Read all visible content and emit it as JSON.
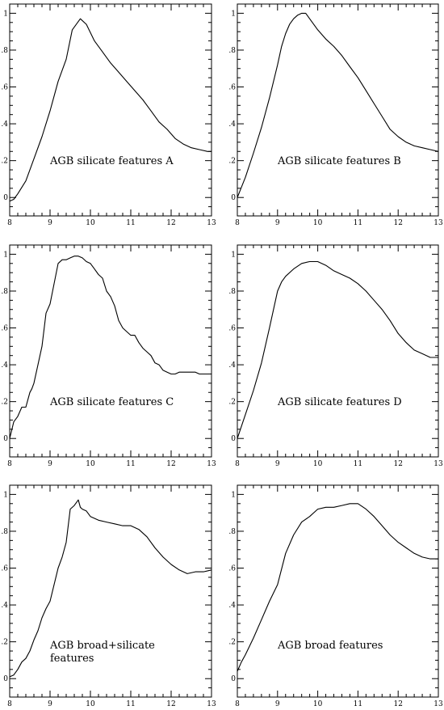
{
  "chart_data": [
    {
      "type": "line",
      "panel": "A",
      "label_lines": [
        "AGB silicate features A"
      ],
      "xlim": [
        8,
        13
      ],
      "ylim": [
        -0.1,
        1.05
      ],
      "xticks": [
        8,
        9,
        10,
        11,
        12,
        13
      ],
      "xtick_labels": [
        "8",
        "9",
        "10",
        "11",
        "12",
        "13"
      ],
      "yticks": [
        0,
        0.2,
        0.4,
        0.6,
        0.8,
        1
      ],
      "ytick_labels": [
        "0",
        ".2",
        ".4",
        ".6",
        ".8",
        "1"
      ],
      "x": [
        8.0,
        8.1,
        8.2,
        8.4,
        8.6,
        8.8,
        9.0,
        9.2,
        9.4,
        9.55,
        9.65,
        9.75,
        9.9,
        10.1,
        10.3,
        10.5,
        10.7,
        10.9,
        11.1,
        11.3,
        11.5,
        11.7,
        11.9,
        12.1,
        12.3,
        12.5,
        12.7,
        12.9,
        13.0
      ],
      "y": [
        -0.02,
        -0.01,
        0.02,
        0.09,
        0.21,
        0.33,
        0.47,
        0.63,
        0.75,
        0.91,
        0.94,
        0.97,
        0.94,
        0.85,
        0.79,
        0.73,
        0.68,
        0.63,
        0.58,
        0.53,
        0.47,
        0.41,
        0.37,
        0.32,
        0.29,
        0.27,
        0.26,
        0.25,
        0.25
      ]
    },
    {
      "type": "line",
      "panel": "B",
      "label_lines": [
        "AGB silicate features B"
      ],
      "xlim": [
        8,
        13
      ],
      "ylim": [
        -0.1,
        1.05
      ],
      "xticks": [
        8,
        9,
        10,
        11,
        12,
        13
      ],
      "xtick_labels": [
        "8",
        "9",
        "10",
        "11",
        "12",
        "13"
      ],
      "yticks": [
        0,
        0.2,
        0.4,
        0.6,
        0.8,
        1
      ],
      "ytick_labels": [
        "0",
        ".2",
        ".4",
        ".6",
        ".8",
        "1"
      ],
      "x": [
        8.0,
        8.2,
        8.4,
        8.6,
        8.8,
        9.0,
        9.1,
        9.2,
        9.3,
        9.4,
        9.5,
        9.6,
        9.7,
        9.8,
        10.0,
        10.2,
        10.4,
        10.6,
        10.8,
        11.0,
        11.2,
        11.4,
        11.6,
        11.8,
        12.0,
        12.2,
        12.4,
        12.6,
        12.8,
        13.0
      ],
      "y": [
        0.0,
        0.11,
        0.24,
        0.38,
        0.54,
        0.72,
        0.82,
        0.89,
        0.94,
        0.97,
        0.99,
        1.0,
        1.0,
        0.97,
        0.91,
        0.86,
        0.82,
        0.77,
        0.71,
        0.65,
        0.58,
        0.51,
        0.44,
        0.37,
        0.33,
        0.3,
        0.28,
        0.27,
        0.26,
        0.25
      ]
    },
    {
      "type": "line",
      "panel": "C",
      "label_lines": [
        "AGB silicate features C"
      ],
      "xlim": [
        8,
        13
      ],
      "ylim": [
        -0.1,
        1.05
      ],
      "xticks": [
        8,
        9,
        10,
        11,
        12,
        13
      ],
      "xtick_labels": [
        "8",
        "9",
        "10",
        "11",
        "12",
        "13"
      ],
      "yticks": [
        0,
        0.2,
        0.4,
        0.6,
        0.8,
        1
      ],
      "ytick_labels": [
        "0",
        ".2",
        ".4",
        ".6",
        ".8",
        "1"
      ],
      "x": [
        8.0,
        8.1,
        8.2,
        8.3,
        8.4,
        8.5,
        8.55,
        8.6,
        8.7,
        8.8,
        8.9,
        9.0,
        9.1,
        9.2,
        9.3,
        9.4,
        9.5,
        9.6,
        9.7,
        9.8,
        9.9,
        10.0,
        10.1,
        10.2,
        10.3,
        10.4,
        10.5,
        10.6,
        10.7,
        10.8,
        10.9,
        11.0,
        11.1,
        11.2,
        11.3,
        11.4,
        11.5,
        11.6,
        11.7,
        11.8,
        11.9,
        12.0,
        12.1,
        12.2,
        12.3,
        12.4,
        12.5,
        12.6,
        12.7,
        12.8,
        12.9,
        13.0
      ],
      "y": [
        0.0,
        0.09,
        0.12,
        0.17,
        0.17,
        0.25,
        0.27,
        0.3,
        0.4,
        0.5,
        0.68,
        0.73,
        0.84,
        0.95,
        0.97,
        0.97,
        0.98,
        0.99,
        0.99,
        0.98,
        0.96,
        0.95,
        0.92,
        0.89,
        0.87,
        0.8,
        0.77,
        0.72,
        0.64,
        0.6,
        0.58,
        0.56,
        0.56,
        0.52,
        0.49,
        0.47,
        0.45,
        0.41,
        0.4,
        0.37,
        0.36,
        0.35,
        0.35,
        0.36,
        0.36,
        0.36,
        0.36,
        0.36,
        0.35,
        0.35,
        0.35,
        0.35
      ]
    },
    {
      "type": "line",
      "panel": "D",
      "label_lines": [
        "AGB silicate features D"
      ],
      "xlim": [
        8,
        13
      ],
      "ylim": [
        -0.1,
        1.05
      ],
      "xticks": [
        8,
        9,
        10,
        11,
        12,
        13
      ],
      "xtick_labels": [
        "8",
        "9",
        "10",
        "11",
        "12",
        "13"
      ],
      "yticks": [
        0,
        0.2,
        0.4,
        0.6,
        0.8,
        1
      ],
      "ytick_labels": [
        "0",
        ".2",
        ".4",
        ".6",
        ".8",
        "1"
      ],
      "x": [
        8.0,
        8.2,
        8.4,
        8.6,
        8.8,
        9.0,
        9.1,
        9.2,
        9.4,
        9.6,
        9.8,
        10.0,
        10.2,
        10.4,
        10.6,
        10.8,
        11.0,
        11.2,
        11.4,
        11.6,
        11.8,
        12.0,
        12.2,
        12.4,
        12.6,
        12.8,
        13.0
      ],
      "y": [
        0.0,
        0.13,
        0.26,
        0.41,
        0.6,
        0.8,
        0.85,
        0.88,
        0.92,
        0.95,
        0.96,
        0.96,
        0.94,
        0.91,
        0.89,
        0.87,
        0.84,
        0.8,
        0.75,
        0.7,
        0.64,
        0.57,
        0.52,
        0.48,
        0.46,
        0.44,
        0.44
      ]
    },
    {
      "type": "line",
      "panel": "E",
      "label_lines": [
        "AGB broad+silicate",
        "features"
      ],
      "xlim": [
        8,
        13
      ],
      "ylim": [
        -0.1,
        1.05
      ],
      "xticks": [
        8,
        9,
        10,
        11,
        12,
        13
      ],
      "xtick_labels": [
        "8",
        "9",
        "10",
        "11",
        "12",
        "13"
      ],
      "yticks": [
        0,
        0.2,
        0.4,
        0.6,
        0.8,
        1
      ],
      "ytick_labels": [
        "0",
        ".2",
        ".4",
        ".6",
        ".8",
        "1"
      ],
      "x": [
        8.0,
        8.1,
        8.2,
        8.3,
        8.4,
        8.5,
        8.6,
        8.7,
        8.8,
        8.9,
        9.0,
        9.1,
        9.2,
        9.3,
        9.4,
        9.5,
        9.6,
        9.7,
        9.75,
        9.8,
        9.9,
        10.0,
        10.2,
        10.4,
        10.6,
        10.8,
        11.0,
        11.2,
        11.4,
        11.6,
        11.8,
        12.0,
        12.2,
        12.4,
        12.6,
        12.8,
        13.0
      ],
      "y": [
        0.01,
        0.02,
        0.05,
        0.09,
        0.11,
        0.15,
        0.21,
        0.26,
        0.33,
        0.38,
        0.42,
        0.51,
        0.6,
        0.66,
        0.74,
        0.92,
        0.94,
        0.97,
        0.93,
        0.92,
        0.91,
        0.88,
        0.86,
        0.85,
        0.84,
        0.83,
        0.83,
        0.81,
        0.77,
        0.71,
        0.66,
        0.62,
        0.59,
        0.57,
        0.58,
        0.58,
        0.59
      ]
    },
    {
      "type": "line",
      "panel": "F",
      "label_lines": [
        "AGB broad features"
      ],
      "xlim": [
        8,
        13
      ],
      "ylim": [
        -0.1,
        1.05
      ],
      "xticks": [
        8,
        9,
        10,
        11,
        12,
        13
      ],
      "xtick_labels": [
        "8",
        "9",
        "10",
        "11",
        "12",
        "13"
      ],
      "yticks": [
        0,
        0.2,
        0.4,
        0.6,
        0.8,
        1
      ],
      "ytick_labels": [
        "0",
        ".2",
        ".4",
        ".6",
        ".8",
        "1"
      ],
      "x": [
        8.0,
        8.1,
        8.2,
        8.4,
        8.6,
        8.8,
        9.0,
        9.2,
        9.4,
        9.6,
        9.8,
        10.0,
        10.2,
        10.4,
        10.6,
        10.8,
        11.0,
        11.2,
        11.4,
        11.6,
        11.8,
        12.0,
        12.2,
        12.4,
        12.6,
        12.8,
        13.0
      ],
      "y": [
        0.04,
        0.09,
        0.13,
        0.22,
        0.32,
        0.42,
        0.51,
        0.68,
        0.78,
        0.85,
        0.88,
        0.92,
        0.93,
        0.93,
        0.94,
        0.95,
        0.95,
        0.92,
        0.88,
        0.83,
        0.78,
        0.74,
        0.71,
        0.68,
        0.66,
        0.65,
        0.65
      ]
    }
  ]
}
